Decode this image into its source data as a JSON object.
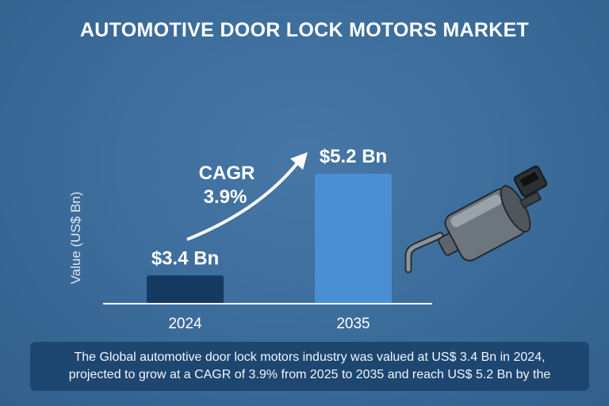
{
  "chart_data": {
    "type": "bar",
    "title": "AUTOMOTIVE DOOR LOCK MOTORS MARKET",
    "xlabel": "",
    "ylabel": "Value (US$ Bn)",
    "categories": [
      "2024",
      "2035"
    ],
    "values": [
      3.4,
      5.2
    ],
    "data_labels": [
      "$3.4 Bn",
      "$5.2 Bn"
    ],
    "bar_colors": [
      "#143a62",
      "#4a8fd3"
    ],
    "ylim": [
      2.9,
      5.5
    ],
    "grid": false,
    "annotation": {
      "line1": "CAGR",
      "line2": "3.9%"
    }
  },
  "description": {
    "line1": "The Global automotive door lock motors industry was valued at US$ 3.4 Bn in 2024,",
    "line2": "projected to grow at a CAGR of 3.9% from 2025 to 2035 and reach US$ 5.2 Bn by the"
  },
  "icons": {
    "illustration": "door-lock-motor-icon"
  }
}
